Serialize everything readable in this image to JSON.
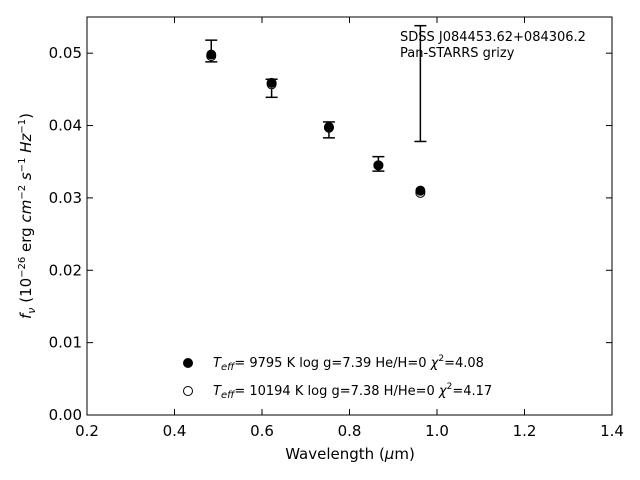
{
  "chart_data": {
    "type": "scatter",
    "xlabel": "Wavelength (μm)",
    "ylabel": "fν (10⁻²⁶ erg cm⁻² s⁻¹ Hz⁻¹)",
    "xlim": [
      0.2,
      1.4
    ],
    "ylim": [
      0.0,
      0.055
    ],
    "x_ticks": [
      "0.2",
      "0.4",
      "0.6",
      "0.8",
      "1.0",
      "1.2",
      "1.4"
    ],
    "y_ticks": [
      "0.00",
      "0.01",
      "0.02",
      "0.03",
      "0.04",
      "0.05"
    ],
    "grid": false,
    "legend_position": "bottom-center",
    "annotations": [
      "SDSS J084453.62+084306.2",
      "Pan-STARRS grizy"
    ],
    "observed": {
      "x": [
        0.484,
        0.622,
        0.753,
        0.866,
        0.962
      ],
      "y": [
        0.0502,
        0.0452,
        0.0395,
        0.0347,
        0.0458
      ],
      "err_low": [
        0.0014,
        0.0013,
        0.0012,
        0.001,
        0.008
      ],
      "err_high": [
        0.0016,
        0.0012,
        0.001,
        0.001,
        0.008
      ]
    },
    "series": [
      {
        "legend_label": "T_eff=  9795 K  log g=7.39  He/H=0  χ²=4.08",
        "marker": "filled-circle",
        "x": [
          0.484,
          0.622,
          0.753,
          0.866,
          0.962
        ],
        "y": [
          0.0498,
          0.0459,
          0.0398,
          0.0345,
          0.031
        ]
      },
      {
        "legend_label": "T_eff= 10194 K  log g=7.38  H/He=0  χ²=4.17",
        "marker": "open-circle",
        "x": [
          0.484,
          0.622,
          0.753,
          0.866,
          0.962
        ],
        "y": [
          0.0496,
          0.0457,
          0.0397,
          0.0345,
          0.0307
        ]
      }
    ]
  }
}
